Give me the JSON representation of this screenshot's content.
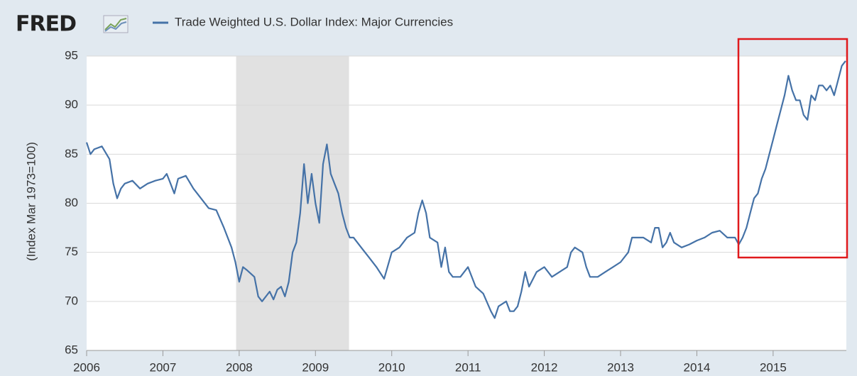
{
  "chart_data": {
    "type": "line",
    "logo": "FRED",
    "y_label": "(Index Mar 1973=100)",
    "xlim": [
      2006,
      2015.96
    ],
    "xticks": [
      2006,
      2007,
      2008,
      2009,
      2010,
      2011,
      2012,
      2013,
      2014,
      2015
    ],
    "ylim": [
      65,
      95
    ],
    "yticks": [
      65,
      70,
      75,
      80,
      85,
      90,
      95
    ],
    "grid": true,
    "legend": "top",
    "shaded_periods": [
      [
        2007.96,
        2009.44
      ]
    ],
    "x": [
      2006.0,
      2006.05,
      2006.1,
      2006.2,
      2006.3,
      2006.35,
      2006.4,
      2006.45,
      2006.5,
      2006.6,
      2006.7,
      2006.8,
      2006.9,
      2007.0,
      2007.05,
      2007.1,
      2007.15,
      2007.2,
      2007.3,
      2007.4,
      2007.5,
      2007.6,
      2007.7,
      2007.8,
      2007.9,
      2007.95,
      2008.0,
      2008.05,
      2008.1,
      2008.2,
      2008.25,
      2008.3,
      2008.4,
      2008.45,
      2008.5,
      2008.55,
      2008.6,
      2008.65,
      2008.7,
      2008.75,
      2008.8,
      2008.85,
      2008.9,
      2008.95,
      2009.0,
      2009.05,
      2009.1,
      2009.15,
      2009.2,
      2009.25,
      2009.3,
      2009.35,
      2009.4,
      2009.45,
      2009.5,
      2009.6,
      2009.7,
      2009.8,
      2009.9,
      2010.0,
      2010.1,
      2010.2,
      2010.3,
      2010.35,
      2010.4,
      2010.45,
      2010.5,
      2010.6,
      2010.65,
      2010.7,
      2010.75,
      2010.8,
      2010.9,
      2011.0,
      2011.1,
      2011.2,
      2011.3,
      2011.35,
      2011.4,
      2011.5,
      2011.55,
      2011.6,
      2011.65,
      2011.7,
      2011.75,
      2011.8,
      2011.9,
      2012.0,
      2012.1,
      2012.2,
      2012.3,
      2012.35,
      2012.4,
      2012.5,
      2012.55,
      2012.6,
      2012.7,
      2012.8,
      2012.9,
      2013.0,
      2013.1,
      2013.15,
      2013.2,
      2013.3,
      2013.4,
      2013.45,
      2013.5,
      2013.55,
      2013.6,
      2013.65,
      2013.7,
      2013.8,
      2013.9,
      2014.0,
      2014.1,
      2014.2,
      2014.3,
      2014.4,
      2014.5,
      2014.55,
      2014.6,
      2014.65,
      2014.7,
      2014.75,
      2014.8,
      2014.85,
      2014.9,
      2014.95,
      2015.0,
      2015.05,
      2015.1,
      2015.15,
      2015.2,
      2015.25,
      2015.3,
      2015.35,
      2015.4,
      2015.45,
      2015.5,
      2015.55,
      2015.6,
      2015.65,
      2015.7,
      2015.75,
      2015.8,
      2015.85,
      2015.9,
      2015.95
    ],
    "series": [
      {
        "name": "Trade Weighted U.S. Dollar Index: Major Currencies",
        "color": "#4572a7",
        "values": [
          86.2,
          85,
          85.5,
          85.8,
          84.5,
          82,
          80.5,
          81.5,
          82,
          82.3,
          81.5,
          82,
          82.3,
          82.5,
          83,
          82,
          81,
          82.5,
          82.8,
          81.5,
          80.5,
          79.5,
          79.3,
          77.5,
          75.5,
          74,
          72,
          73.5,
          73.2,
          72.5,
          70.5,
          70,
          71,
          70.2,
          71.2,
          71.5,
          70.5,
          72,
          75,
          76,
          79,
          84,
          80,
          83,
          80,
          78,
          84,
          86,
          83,
          82,
          81,
          79,
          77.5,
          76.5,
          76.5,
          75.5,
          74.5,
          73.5,
          72.3,
          75,
          75.5,
          76.5,
          77,
          79,
          80.3,
          79,
          76.5,
          76,
          73.5,
          75.5,
          73,
          72.5,
          72.5,
          73.5,
          71.5,
          70.8,
          69,
          68.3,
          69.5,
          70,
          69,
          69,
          69.5,
          71,
          73,
          71.5,
          73,
          73.5,
          72.5,
          73,
          73.5,
          75,
          75.5,
          75,
          73.5,
          72.5,
          72.5,
          73,
          73.5,
          74,
          75,
          76.5,
          76.5,
          76.5,
          76,
          77.5,
          77.5,
          75.5,
          76,
          77,
          76,
          75.5,
          75.8,
          76.2,
          76.5,
          77,
          77.2,
          76.5,
          76.5,
          75.8,
          76.5,
          77.5,
          79,
          80.5,
          81,
          82.5,
          83.5,
          85,
          86.5,
          88,
          89.5,
          91,
          93,
          91.5,
          90.5,
          90.5,
          89,
          88.5,
          91,
          90.5,
          92,
          92,
          91.5,
          92,
          91,
          92.5,
          94,
          94.5
        ]
      }
    ]
  }
}
